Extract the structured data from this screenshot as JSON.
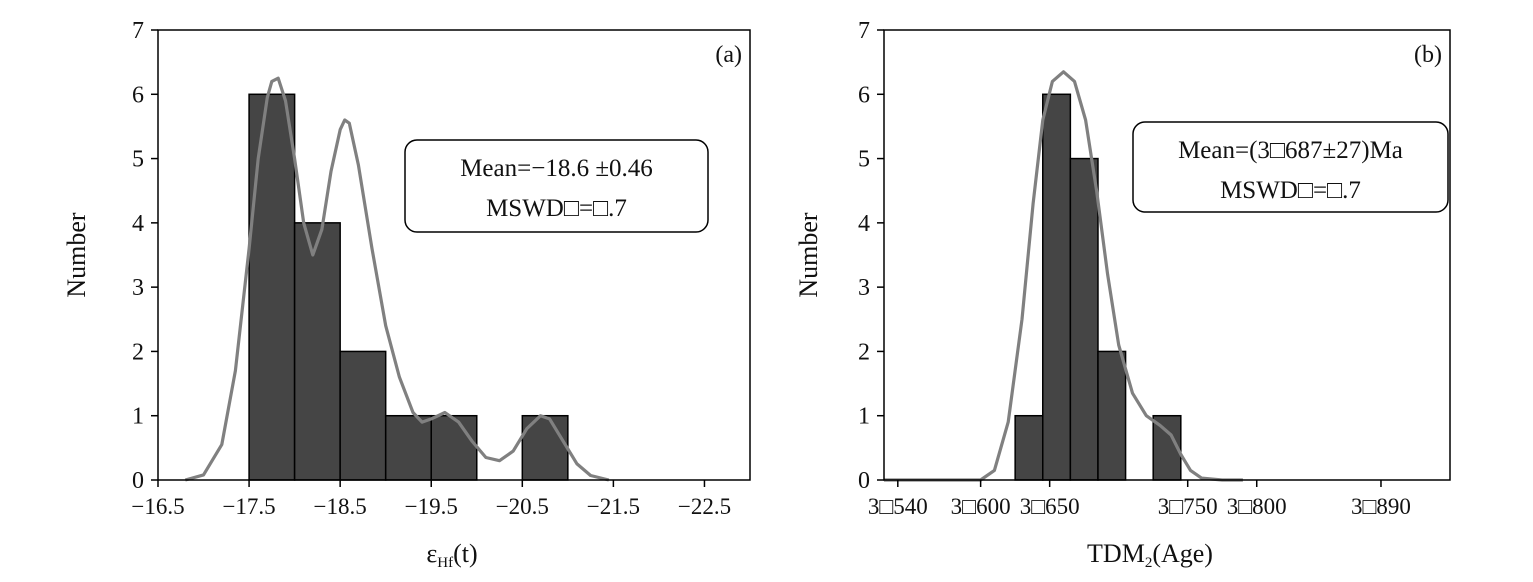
{
  "chart_data": [
    {
      "type": "bar",
      "panel_label": "(a)",
      "ylabel": "Number",
      "xlabel": "ε",
      "xlabel_sub": "Hf",
      "xlabel_suffix": "(t)",
      "xlim": [
        -16.5,
        -23.0
      ],
      "ylim": [
        0,
        7
      ],
      "yticks": [
        0,
        1,
        2,
        3,
        4,
        5,
        6,
        7
      ],
      "xticks": [
        {
          "value": -16.5,
          "label": "−16.5"
        },
        {
          "value": -17.5,
          "label": "−17.5"
        },
        {
          "value": -18.5,
          "label": "−18.5"
        },
        {
          "value": -19.5,
          "label": "−19.5"
        },
        {
          "value": -20.5,
          "label": "−20.5"
        },
        {
          "value": -21.5,
          "label": "−21.5"
        },
        {
          "value": -22.5,
          "label": "−22.5"
        }
      ],
      "bars": [
        {
          "start": -17.5,
          "end": -18.0,
          "value": 6
        },
        {
          "start": -18.0,
          "end": -18.5,
          "value": 4
        },
        {
          "start": -18.5,
          "end": -19.0,
          "value": 2
        },
        {
          "start": -19.0,
          "end": -19.5,
          "value": 1
        },
        {
          "start": -19.5,
          "end": -20.0,
          "value": 1
        },
        {
          "start": -20.5,
          "end": -21.0,
          "value": 1
        }
      ],
      "curve": [
        [
          -16.8,
          0.0
        ],
        [
          -17.0,
          0.08
        ],
        [
          -17.2,
          0.55
        ],
        [
          -17.35,
          1.7
        ],
        [
          -17.5,
          3.6
        ],
        [
          -17.6,
          5.0
        ],
        [
          -17.7,
          5.95
        ],
        [
          -17.75,
          6.2
        ],
        [
          -17.82,
          6.25
        ],
        [
          -17.9,
          5.9
        ],
        [
          -18.0,
          5.0
        ],
        [
          -18.1,
          4.0
        ],
        [
          -18.2,
          3.5
        ],
        [
          -18.3,
          3.9
        ],
        [
          -18.4,
          4.8
        ],
        [
          -18.5,
          5.45
        ],
        [
          -18.55,
          5.6
        ],
        [
          -18.6,
          5.55
        ],
        [
          -18.7,
          4.9
        ],
        [
          -18.85,
          3.6
        ],
        [
          -19.0,
          2.4
        ],
        [
          -19.15,
          1.6
        ],
        [
          -19.3,
          1.05
        ],
        [
          -19.4,
          0.9
        ],
        [
          -19.5,
          0.95
        ],
        [
          -19.65,
          1.05
        ],
        [
          -19.8,
          0.9
        ],
        [
          -19.95,
          0.6
        ],
        [
          -20.1,
          0.35
        ],
        [
          -20.25,
          0.3
        ],
        [
          -20.4,
          0.45
        ],
        [
          -20.55,
          0.8
        ],
        [
          -20.7,
          1.0
        ],
        [
          -20.8,
          0.95
        ],
        [
          -20.95,
          0.6
        ],
        [
          -21.1,
          0.25
        ],
        [
          -21.25,
          0.07
        ],
        [
          -21.45,
          0.0
        ]
      ],
      "annotation": {
        "line1": "Mean=−18.6 ±0.46",
        "line2": "MSWD□=□.7"
      }
    },
    {
      "type": "bar",
      "panel_label": "(b)",
      "ylabel": "Number",
      "xlabel": "TDM",
      "xlabel_sub": "2",
      "xlabel_suffix": "(Age)",
      "xlim": [
        3530,
        3940
      ],
      "ylim": [
        0,
        7
      ],
      "yticks": [
        0,
        1,
        2,
        3,
        4,
        5,
        6,
        7
      ],
      "xticks": [
        {
          "value": 3540,
          "label": "3□540"
        },
        {
          "value": 3600,
          "label": "3□600"
        },
        {
          "value": 3650,
          "label": "3□650"
        },
        {
          "value": 3750,
          "label": "3□750"
        },
        {
          "value": 3800,
          "label": "3□800"
        },
        {
          "value": 3890,
          "label": "3□890"
        }
      ],
      "bars": [
        {
          "start": 3625,
          "end": 3645,
          "value": 1
        },
        {
          "start": 3645,
          "end": 3665,
          "value": 6
        },
        {
          "start": 3665,
          "end": 3685,
          "value": 5
        },
        {
          "start": 3685,
          "end": 3705,
          "value": 2
        },
        {
          "start": 3725,
          "end": 3745,
          "value": 1
        }
      ],
      "curve": [
        [
          3530,
          0.0
        ],
        [
          3560,
          0.0
        ],
        [
          3600,
          0.0
        ],
        [
          3610,
          0.15
        ],
        [
          3620,
          0.9
        ],
        [
          3630,
          2.5
        ],
        [
          3638,
          4.3
        ],
        [
          3645,
          5.6
        ],
        [
          3652,
          6.2
        ],
        [
          3660,
          6.35
        ],
        [
          3668,
          6.2
        ],
        [
          3676,
          5.6
        ],
        [
          3684,
          4.5
        ],
        [
          3692,
          3.2
        ],
        [
          3700,
          2.1
        ],
        [
          3710,
          1.35
        ],
        [
          3720,
          1.0
        ],
        [
          3730,
          0.85
        ],
        [
          3738,
          0.7
        ],
        [
          3745,
          0.4
        ],
        [
          3752,
          0.15
        ],
        [
          3760,
          0.03
        ],
        [
          3775,
          0.0
        ],
        [
          3790,
          0.0
        ]
      ],
      "annotation": {
        "line1": "Mean=(3□687±27)Ma",
        "line2": "MSWD□=□.7"
      }
    }
  ],
  "colors": {
    "bar_fill": "#454545",
    "bar_stroke": "#000000",
    "curve": "#808080",
    "axis": "#000000"
  }
}
